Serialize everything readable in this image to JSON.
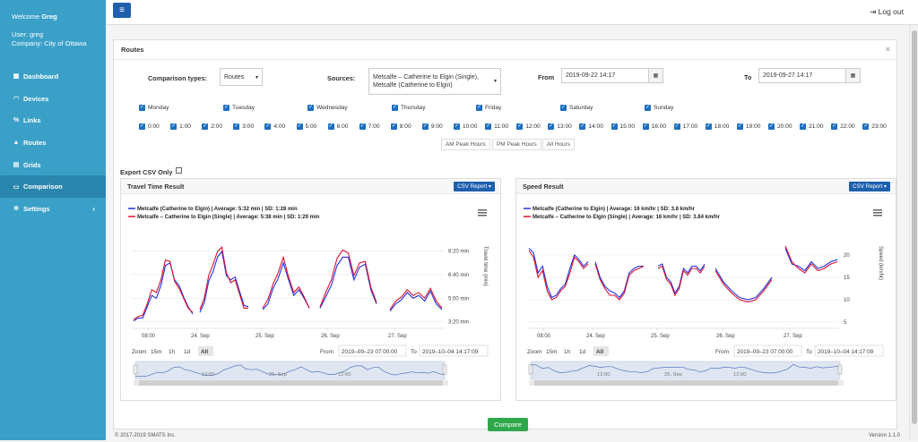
{
  "sidebar": {
    "welcome_prefix": "Welcome",
    "welcome_name": "Greg",
    "user": "User: greg",
    "company": "Company: City of Ottawa",
    "items": [
      {
        "label": "Dashboard",
        "icon": "dashboard-icon"
      },
      {
        "label": "Devices",
        "icon": "wifi-icon"
      },
      {
        "label": "Links",
        "icon": "link-icon"
      },
      {
        "label": "Routes",
        "icon": "road-icon"
      },
      {
        "label": "Grids",
        "icon": "grid-icon"
      },
      {
        "label": "Comparison",
        "icon": "monitor-icon",
        "active": true
      },
      {
        "label": "Settings",
        "icon": "gear-icon",
        "chevron": "‹"
      }
    ],
    "colors": {
      "bg": "#3aa0c8",
      "active": "#2a86ad"
    }
  },
  "topbar": {
    "menu_icon": "≡",
    "logout_label": "Log out"
  },
  "panel": {
    "title": "Routes",
    "close": "×",
    "comparison_label": "Comparison types:",
    "comparison_value": "Routes",
    "sources_label": "Sources:",
    "sources_value_1": "Metcalfe – Catherine to Elgin (Single),",
    "sources_value_2": "Metcalfe (Catherine to Elgin)",
    "from_label": "From",
    "from_value": "2019-09-22 14:17",
    "to_label": "To",
    "to_value": "2019-09-27 14:17",
    "days": [
      "Monday",
      "Tuesday",
      "Wednesday",
      "Thursday",
      "Friday",
      "Saturday",
      "Sunday"
    ],
    "hours": [
      "0:00",
      "1:00",
      "2:00",
      "3:00",
      "4:00",
      "5:00",
      "6:00",
      "7:00",
      "8:00",
      "9:00",
      "10:00",
      "11:00",
      "12:00",
      "13:00",
      "14:00",
      "15:00",
      "16:00",
      "17:00",
      "18:00",
      "19:00",
      "20:00",
      "21:00",
      "22:00",
      "23:00"
    ],
    "peak_buttons": [
      "AM Peak Hours",
      "PM Peak Hours",
      "All Hours"
    ],
    "export_label": "Export CSV Only",
    "compare_label": "Compare"
  },
  "travel": {
    "title": "Travel Time Result",
    "csv": "CSV Report ▾",
    "legend_blue": "Metcalfe (Catherine to Elgin) | Average: 5:32 min | SD: 1:28 min",
    "legend_red": "Metcalfe – Catherine to Elgin (Single) | Average: 5:38 min | SD: 1:29 min",
    "y_ticks": [
      "8:20 min",
      "6:40 min",
      "5:00 min",
      "3:20 min"
    ],
    "ylabel": "Travel time (min)",
    "x_ticks": [
      "08:00",
      "24. Sep",
      "25. Sep",
      "26. Sep",
      "27. Sep"
    ],
    "zoom_label": "Zoom",
    "zoom_buttons": [
      "15m",
      "1h",
      "1d",
      "All"
    ],
    "range_from_label": "From",
    "range_from": "2019–09–23 07:00:00",
    "range_to_label": "To",
    "range_to": "2019–10–04 14:17:09",
    "nav_ticks": [
      "12:00",
      "25. Sep",
      "12:00"
    ]
  },
  "speed": {
    "title": "Speed Result",
    "csv": "CSV Report ▾",
    "legend_blue": "Metcalfe (Catherine to Elgin) | Average: 16 km/hr | SD: 3.8 km/hr",
    "legend_red": "Metcalfe – Catherine to Elgin (Single) | Average: 16 km/hr | SD: 3.84 km/hr",
    "y_ticks": [
      "20",
      "15",
      "10",
      "5"
    ],
    "ylabel": "Speed (km/hr)",
    "x_ticks": [
      "08:00",
      "24. Sep",
      "25. Sep",
      "26. Sep",
      "27. Sep"
    ],
    "zoom_label": "Zoom",
    "zoom_buttons": [
      "15m",
      "1h",
      "1d",
      "All"
    ],
    "range_from_label": "From",
    "range_from": "2019–09–23 07:00:00",
    "range_to_label": "To",
    "range_to": "2019–10–04 14:17:09",
    "nav_ticks": [
      "12:00",
      "25. Sep",
      "12:00"
    ]
  },
  "footer": {
    "left": "© 2017-2019 SMATS Inc.",
    "right": "Version 1.1.0"
  },
  "chart_data": [
    {
      "type": "line",
      "title": "Travel Time Result",
      "ylabel": "Travel time (min)",
      "y_ticks": [
        "3:20 min",
        "5:00 min",
        "6:40 min",
        "8:20 min"
      ],
      "ylim": [
        3.0,
        9.0
      ],
      "x_ticks": [
        "08:00",
        "24. Sep",
        "25. Sep",
        "26. Sep",
        "27. Sep"
      ],
      "colors": {
        "blue": "#2233dd",
        "red": "#dd1133"
      },
      "series": [
        {
          "name": "Metcalfe (Catherine to Elgin)",
          "segments": [
            [
              3.4,
              3.6,
              3.6,
              4.4,
              5.2,
              5.0,
              5.9,
              7.3,
              7.5,
              6.3,
              5.9,
              5.1,
              4.4,
              3.9
            ],
            [
              4.0,
              4.7,
              6.2,
              6.9,
              7.9,
              8.3,
              6.6,
              6.3,
              6.5,
              5.5,
              4.5,
              4.4
            ],
            [
              4.2,
              4.6,
              5.7,
              6.4,
              7.5,
              6.3,
              5.2,
              5.6,
              5.0,
              4.3
            ],
            [
              4.3,
              5.1,
              5.9,
              7.3,
              7.9,
              7.9,
              6.3,
              7.2,
              7.4,
              5.6,
              4.6
            ],
            [
              4.1,
              4.6,
              4.9,
              5.4,
              5.0,
              5.2,
              4.8,
              5.5,
              4.6,
              4.2
            ]
          ]
        },
        {
          "name": "Metcalfe – Catherine to Elgin (Single)",
          "segments": [
            [
              3.5,
              3.7,
              3.8,
              4.6,
              5.6,
              5.4,
              6.3,
              7.7,
              7.6,
              6.2,
              5.7,
              5.0,
              4.3,
              4.0
            ],
            [
              4.2,
              5.0,
              6.6,
              7.4,
              8.3,
              8.6,
              6.8,
              6.1,
              6.3,
              5.3,
              4.3,
              4.3
            ],
            [
              4.3,
              4.9,
              6.0,
              6.8,
              7.9,
              6.5,
              5.4,
              5.8,
              5.1,
              4.3
            ],
            [
              4.4,
              5.4,
              6.3,
              7.8,
              8.4,
              8.2,
              6.6,
              7.5,
              7.6,
              5.8,
              4.7
            ],
            [
              4.2,
              4.8,
              5.1,
              5.6,
              5.2,
              5.4,
              5.0,
              5.7,
              4.8,
              4.3
            ]
          ]
        }
      ]
    },
    {
      "type": "line",
      "title": "Speed Result",
      "ylabel": "Speed (km/hr)",
      "y_ticks": [
        "5",
        "10",
        "15",
        "20"
      ],
      "ylim": [
        4,
        23
      ],
      "x_ticks": [
        "08:00",
        "24. Sep",
        "25. Sep",
        "26. Sep",
        "27. Sep"
      ],
      "colors": {
        "blue": "#2233dd",
        "red": "#dd1133"
      },
      "series": [
        {
          "name": "Metcalfe (Catherine to Elgin)",
          "segments": [
            [
              21.5,
              20.5,
              16,
              17.5,
              13,
              10.5,
              11,
              12.5,
              13.5,
              17,
              20,
              19,
              17.5,
              18.5
            ],
            [
              18.5,
              15,
              13,
              12,
              11.5,
              10.5,
              12,
              16,
              17,
              17.5,
              17.5
            ],
            [
              17.5,
              18,
              15,
              14,
              11.5,
              13,
              17,
              16,
              17.5,
              17.5,
              16.5,
              18
            ],
            [
              17,
              14,
              12,
              10.5,
              10,
              10.5,
              12.5,
              15
            ],
            [
              21.5,
              18,
              17.5,
              16.5,
              18.5,
              17,
              17.5,
              18.5,
              19
            ]
          ]
        },
        {
          "name": "Metcalfe – Catherine to Elgin (Single)",
          "segments": [
            [
              21,
              19.5,
              15,
              16.5,
              12,
              10,
              10.5,
              12,
              13,
              16,
              19.5,
              18.5,
              17,
              18
            ],
            [
              18,
              14.5,
              12.5,
              11,
              11,
              10,
              11.5,
              15.5,
              16.5,
              17,
              17.5
            ],
            [
              17,
              17.5,
              14.5,
              13.5,
              11,
              12.5,
              16.5,
              15.5,
              17,
              17,
              16,
              17.5
            ],
            [
              16.5,
              13.5,
              11.5,
              10,
              9.5,
              10,
              12,
              14.5
            ],
            [
              22,
              18.5,
              17,
              16,
              18,
              16.5,
              17,
              18,
              18.5
            ]
          ]
        }
      ]
    }
  ]
}
